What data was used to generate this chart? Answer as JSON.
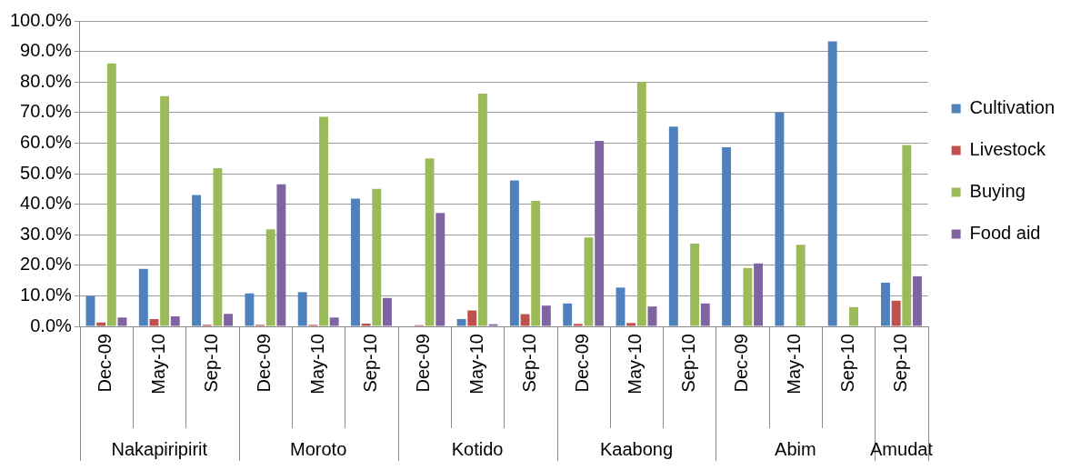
{
  "chart_data": {
    "type": "bar",
    "categories": [
      "Dec-09",
      "May-10",
      "Sep-10",
      "Dec-09",
      "May-10",
      "Sep-10",
      "Dec-09",
      "May-10",
      "Sep-10",
      "Dec-09",
      "May-10",
      "Sep-10",
      "Dec-09",
      "May-10",
      "Sep-10",
      "Sep-10"
    ],
    "series": [
      {
        "name": "Cultivation",
        "color": "#4f81bd",
        "values": [
          10,
          18.8,
          43,
          10.8,
          11.2,
          41.8,
          null,
          2.4,
          47.8,
          7.5,
          12.7,
          65.4,
          58.6,
          70,
          93.3,
          14.3
        ]
      },
      {
        "name": "Livestock",
        "color": "#c0504d",
        "values": [
          1.3,
          2.4,
          0.5,
          0.5,
          0.5,
          0.9,
          0.4,
          5.2,
          4,
          0.8,
          1.1,
          null,
          null,
          null,
          null,
          8.4
        ]
      },
      {
        "name": "Buying",
        "color": "#9bbb59",
        "values": [
          86.1,
          75.4,
          51.8,
          31.8,
          68.6,
          45,
          55,
          76.2,
          41.1,
          29.1,
          80,
          27.1,
          19.1,
          26.7,
          6.3,
          59.4
        ]
      },
      {
        "name": "Food aid",
        "color": "#8064a2",
        "values": [
          2.9,
          3.3,
          4.1,
          46.5,
          2.9,
          9.3,
          37.1,
          0.7,
          6.8,
          60.7,
          6.5,
          7.5,
          20.6,
          null,
          null,
          16.4
        ]
      }
    ],
    "annotations": [
      "Nakapiripirit",
      "Moroto",
      "Kotido",
      "Kaabong",
      "Abim",
      "Amudat"
    ],
    "ylim": [
      0,
      100
    ],
    "yticks": [
      {
        "value": 0,
        "label": "0.0%"
      },
      {
        "value": 10,
        "label": "10.0%"
      },
      {
        "value": 20,
        "label": "20.0%"
      },
      {
        "value": 30,
        "label": "30.0%"
      },
      {
        "value": 40,
        "label": "40.0%"
      },
      {
        "value": 50,
        "label": "50.0%"
      },
      {
        "value": 60,
        "label": "60.0%"
      },
      {
        "value": 70,
        "label": "70.0%"
      },
      {
        "value": 80,
        "label": "80.0%"
      },
      {
        "value": 90,
        "label": "90.0%"
      },
      {
        "value": 100,
        "label": "100.0%"
      }
    ],
    "grid": "y",
    "legend": "right"
  }
}
